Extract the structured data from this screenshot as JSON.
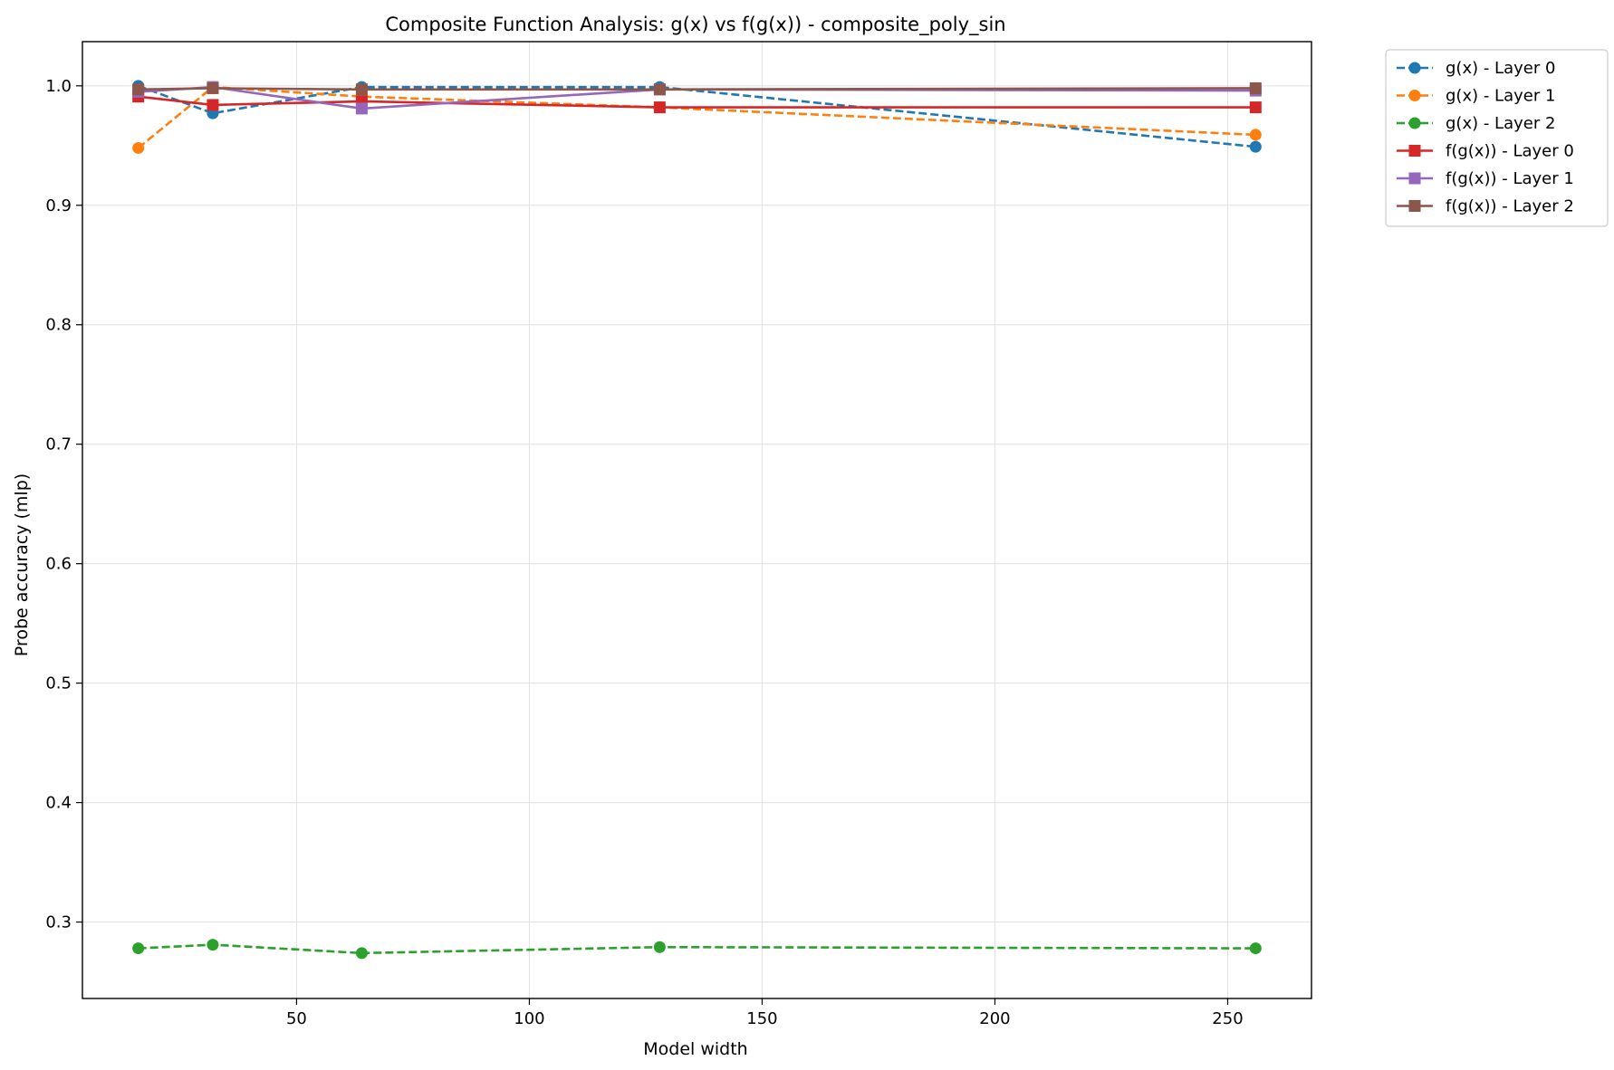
{
  "chart_data": {
    "type": "line",
    "title": "Composite Function Analysis: g(x) vs f(g(x)) - composite_poly_sin",
    "xlabel": "Model width",
    "ylabel": "Probe accuracy (mlp)",
    "xlim": [
      4,
      268
    ],
    "ylim": [
      0.236,
      1.037
    ],
    "xticks": [
      50,
      100,
      150,
      200,
      250
    ],
    "yticks": [
      0.3,
      0.4,
      0.5,
      0.6,
      0.7,
      0.8,
      0.9,
      1.0
    ],
    "x": [
      16,
      32,
      64,
      128,
      256
    ],
    "grid": true,
    "legend_position": "outside-top-right",
    "series": [
      {
        "name": "g(x) - Layer 0",
        "color": "#1f77b4",
        "linestyle": "dashed",
        "marker": "circle",
        "values": [
          1.0,
          0.977,
          0.999,
          0.999,
          0.949
        ]
      },
      {
        "name": "g(x) - Layer 1",
        "color": "#ff7f0e",
        "linestyle": "dashed",
        "marker": "circle",
        "values": [
          0.948,
          0.999,
          0.991,
          0.982,
          0.959
        ]
      },
      {
        "name": "g(x) - Layer 2",
        "color": "#2ca02c",
        "linestyle": "dashed",
        "marker": "circle",
        "values": [
          0.278,
          0.281,
          0.274,
          0.279,
          0.278
        ]
      },
      {
        "name": "f(g(x)) - Layer 0",
        "color": "#d62728",
        "linestyle": "solid",
        "marker": "square",
        "values": [
          0.991,
          0.984,
          0.987,
          0.982,
          0.982
        ]
      },
      {
        "name": "f(g(x)) - Layer 1",
        "color": "#9467bd",
        "linestyle": "solid",
        "marker": "square",
        "values": [
          0.995,
          0.999,
          0.981,
          0.997,
          0.996
        ]
      },
      {
        "name": "f(g(x)) - Layer 2",
        "color": "#8c564b",
        "linestyle": "solid",
        "marker": "square",
        "values": [
          0.997,
          0.998,
          0.997,
          0.997,
          0.998
        ]
      }
    ]
  }
}
